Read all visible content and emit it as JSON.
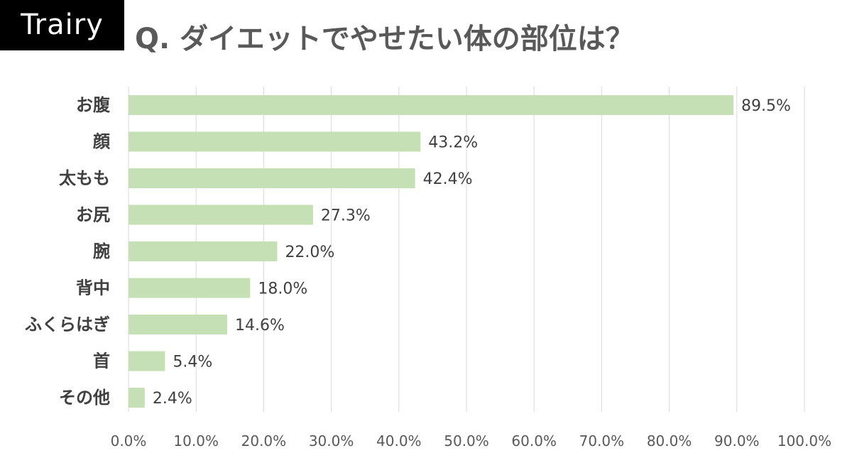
{
  "logo": {
    "text": "Trairy"
  },
  "title": "Q. ダイエットでやせたい体の部位は？",
  "colors": {
    "bar": "#c5e0b4",
    "grid": "#d9d9d9",
    "category_label": "#404040",
    "value_label": "#404040",
    "tick_label": "#595959"
  },
  "chart_data": {
    "type": "bar",
    "orientation": "horizontal",
    "title": "Q. ダイエットでやせたい体の部位は？",
    "xlabel": "",
    "ylabel": "",
    "categories": [
      "お腹",
      "顔",
      "太もも",
      "お尻",
      "腕",
      "背中",
      "ふくらはぎ",
      "首",
      "その他"
    ],
    "values": [
      89.5,
      43.2,
      42.4,
      27.3,
      22.0,
      18.0,
      14.6,
      5.4,
      2.4
    ],
    "value_labels": [
      "89.5%",
      "43.2%",
      "42.4%",
      "27.3%",
      "22.0%",
      "18.0%",
      "14.6%",
      "5.4%",
      "2.4%"
    ],
    "xlim": [
      0,
      100
    ],
    "x_ticks": [
      0,
      10,
      20,
      30,
      40,
      50,
      60,
      70,
      80,
      90,
      100
    ],
    "x_tick_labels": [
      "0.0%",
      "10.0%",
      "20.0%",
      "30.0%",
      "40.0%",
      "50.0%",
      "60.0%",
      "70.0%",
      "80.0%",
      "90.0%",
      "100.0%"
    ],
    "grid": true,
    "legend": "none"
  }
}
